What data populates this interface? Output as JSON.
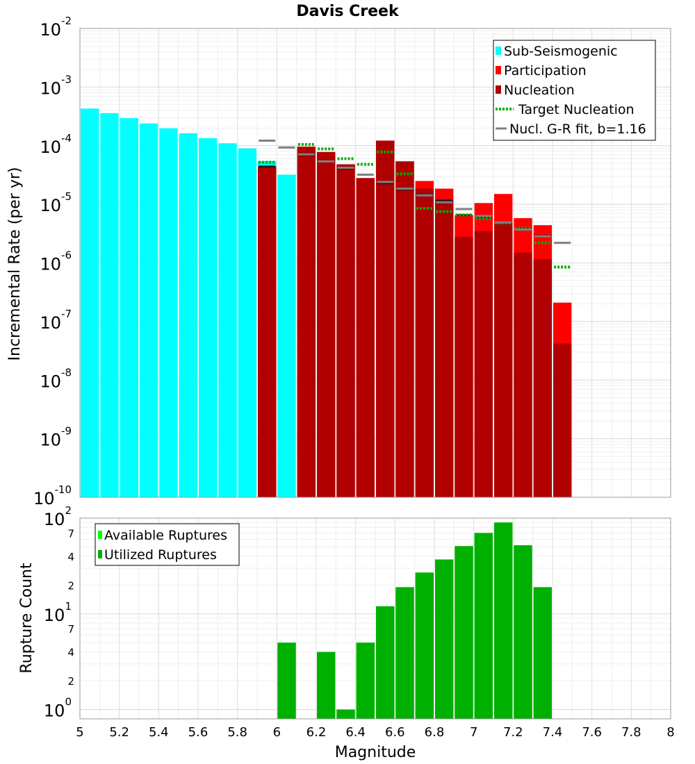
{
  "chart_data": [
    {
      "type": "bar",
      "title": "Davis Creek",
      "ylabel": "Incremental Rate (per yr)",
      "xlabel": "",
      "yscale": "log",
      "ylim": [
        1e-10,
        0.01
      ],
      "xlim": [
        5,
        8
      ],
      "bin_width": 0.1,
      "grid": true,
      "legend_position": "top-right",
      "y_tick_labels": [
        {
          "value": 1e-10,
          "base": "10",
          "exp": "-10"
        },
        {
          "value": 1e-09,
          "base": "10",
          "exp": "-9"
        },
        {
          "value": 1e-08,
          "base": "10",
          "exp": "-8"
        },
        {
          "value": 1e-07,
          "base": "10",
          "exp": "-7"
        },
        {
          "value": 1e-06,
          "base": "10",
          "exp": "-6"
        },
        {
          "value": 1e-05,
          "base": "10",
          "exp": "-5"
        },
        {
          "value": 0.0001,
          "base": "10",
          "exp": "-4"
        },
        {
          "value": 0.001,
          "base": "10",
          "exp": "-3"
        },
        {
          "value": 0.01,
          "base": "10",
          "exp": "-2"
        }
      ],
      "legend": [
        {
          "label": "Sub-Seismogenic",
          "symbol": "box",
          "color": "#00ffff"
        },
        {
          "label": "Participation",
          "symbol": "box",
          "color": "#ff0000"
        },
        {
          "label": "Nucleation",
          "symbol": "box",
          "color": "#b00000"
        },
        {
          "label": "Target Nucleation",
          "symbol": "dotted",
          "color": "#00b000"
        },
        {
          "label": "Nucl. G-R fit, b=1.16",
          "symbol": "line",
          "color": "#808080"
        }
      ],
      "series": [
        {
          "name": "Sub-Seismogenic",
          "kind": "bar",
          "color": "#00ffff",
          "x": [
            5.05,
            5.15,
            5.25,
            5.35,
            5.45,
            5.55,
            5.65,
            5.75,
            5.85,
            5.95,
            6.05
          ],
          "values": [
            0.00043,
            0.00036,
            0.000295,
            0.00024,
            0.000198,
            0.000163,
            0.000134,
            0.00011,
            9e-05,
            5.5e-05,
            3.2e-05
          ]
        },
        {
          "name": "Participation",
          "kind": "bar",
          "color": "#ff0000",
          "x": [
            5.95,
            6.15,
            6.25,
            6.35,
            6.45,
            6.55,
            6.65,
            6.75,
            6.85,
            6.95,
            7.05,
            7.15,
            7.25,
            7.35,
            7.45
          ],
          "values": [
            4.4e-05,
            9.6e-05,
            7.8e-05,
            4.8e-05,
            2.8e-05,
            0.000122,
            5.4e-05,
            2.5e-05,
            1.85e-05,
            6.5e-06,
            1.05e-05,
            1.5e-05,
            5.8e-06,
            4.4e-06,
            2.1e-07
          ]
        },
        {
          "name": "Nucleation",
          "kind": "bar",
          "color": "#b00000",
          "x": [
            5.95,
            6.15,
            6.25,
            6.35,
            6.45,
            6.55,
            6.65,
            6.75,
            6.85,
            6.95,
            7.05,
            7.15,
            7.25,
            7.35,
            7.45
          ],
          "values": [
            4.4e-05,
            9.6e-05,
            7.8e-05,
            4.8e-05,
            2.8e-05,
            0.000122,
            5.4e-05,
            1.85e-05,
            1.2e-05,
            2.8e-06,
            3.5e-06,
            4.8e-06,
            1.5e-06,
            1.15e-06,
            4.2e-08
          ]
        },
        {
          "name": "Nucleation markers",
          "kind": "hmark",
          "color": "#1a1a1a",
          "x": [
            5.95,
            6.15,
            6.25,
            6.35,
            6.55,
            6.65,
            6.75,
            6.85,
            6.95,
            7.05,
            7.15,
            7.25,
            7.35
          ],
          "values": [
            4.4e-05,
            7e-05,
            5.4e-05,
            4.1e-05,
            2.3e-05,
            1.8e-05,
            1.45e-05,
            1.15e-05,
            6.5e-06,
            6e-06,
            4.8e-06,
            3.8e-06,
            2.9e-06
          ]
        },
        {
          "name": "Target Nucleation",
          "kind": "hmark-dotted",
          "color": "#00b000",
          "x": [
            5.95,
            6.15,
            6.25,
            6.35,
            6.45,
            6.55,
            6.65,
            6.75,
            6.85,
            6.95,
            7.05,
            7.15,
            7.25,
            7.35,
            7.45
          ],
          "values": [
            5.2e-05,
            0.000105,
            8.8e-05,
            6e-05,
            4.8e-05,
            7.8e-05,
            3.3e-05,
            8.5e-06,
            7.5e-06,
            6.6e-06,
            5.7e-06,
            4.8e-06,
            3.9e-06,
            2.2e-06,
            8.5e-07
          ]
        },
        {
          "name": "Nucl. G-R fit, b=1.16",
          "kind": "hmark",
          "color": "#808080",
          "x": [
            5.95,
            6.05,
            6.15,
            6.25,
            6.35,
            6.45,
            6.55,
            6.65,
            6.75,
            6.85,
            6.95,
            7.05,
            7.15,
            7.25,
            7.35,
            7.45
          ],
          "values": [
            0.000122,
            9.3e-05,
            7.1e-05,
            5.4e-05,
            4.2e-05,
            3.2e-05,
            2.4e-05,
            1.85e-05,
            1.42e-05,
            1.08e-05,
            8.3e-06,
            6.3e-06,
            4.9e-06,
            3.7e-06,
            2.85e-06,
            2.2e-06
          ]
        }
      ]
    },
    {
      "type": "bar",
      "title": "",
      "ylabel": "Rupture Count",
      "xlabel": "Magnitude",
      "yscale": "log",
      "ylim": [
        0.8,
        100
      ],
      "xlim": [
        5,
        8
      ],
      "grid": true,
      "legend_position": "top-left",
      "x_tick_labels": [
        "5",
        "5.2",
        "5.4",
        "5.6",
        "5.8",
        "6",
        "6.2",
        "6.4",
        "6.6",
        "6.8",
        "7",
        "7.2",
        "7.4",
        "7.6",
        "7.8",
        "8"
      ],
      "y_major_ticks": [
        {
          "value": 1,
          "base": "10",
          "exp": "0"
        },
        {
          "value": 10,
          "base": "10",
          "exp": "1"
        },
        {
          "value": 100,
          "base": "10",
          "exp": "2"
        }
      ],
      "y_minor_ticks": [
        {
          "value": 2,
          "label": "2"
        },
        {
          "value": 4,
          "label": "4"
        },
        {
          "value": 7,
          "label": "7"
        },
        {
          "value": 20,
          "label": "2"
        },
        {
          "value": 40,
          "label": "4"
        },
        {
          "value": 70,
          "label": "7"
        }
      ],
      "legend": [
        {
          "label": "Available Ruptures",
          "symbol": "box",
          "color": "#00ff00"
        },
        {
          "label": "Utilized Ruptures",
          "symbol": "box",
          "color": "#00b000"
        }
      ],
      "series": [
        {
          "name": "Available Ruptures",
          "kind": "bar",
          "color": "#00ff00",
          "x": [
            6.05,
            6.25,
            6.35,
            6.45,
            6.55,
            6.65,
            6.75,
            6.85,
            6.95,
            7.05,
            7.15,
            7.25,
            7.35
          ],
          "values": [
            5,
            4,
            1,
            5,
            12,
            19,
            27,
            37,
            51,
            70,
            90,
            52,
            19
          ]
        },
        {
          "name": "Utilized Ruptures",
          "kind": "bar",
          "color": "#00b000",
          "x": [
            6.05,
            6.25,
            6.35,
            6.45,
            6.55,
            6.65,
            6.75,
            6.85,
            6.95,
            7.05,
            7.15,
            7.25,
            7.35
          ],
          "values": [
            5,
            4,
            1,
            5,
            12,
            19,
            27,
            37,
            51,
            70,
            90,
            52,
            19
          ]
        }
      ]
    }
  ]
}
